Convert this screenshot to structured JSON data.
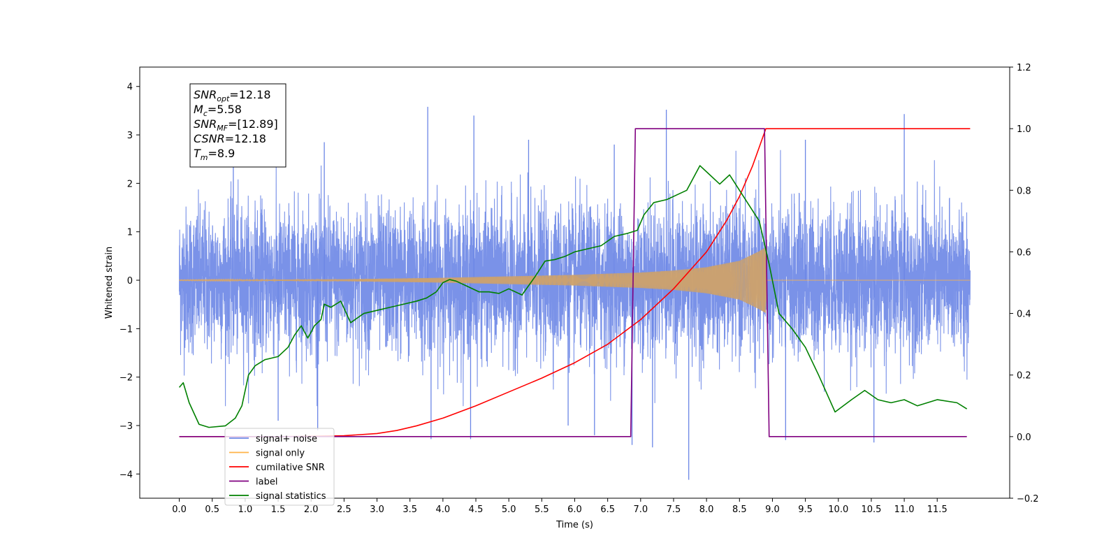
{
  "chart_data": {
    "type": "line",
    "title": "",
    "xlabel": "Time (s)",
    "ylabel": "Whitened strain",
    "xlim": [
      -0.6,
      12.6
    ],
    "ylim": [
      -4.5,
      4.4
    ],
    "ylim_right": [
      -0.2,
      1.2
    ],
    "grid": false,
    "legend_position": "lower-left",
    "x_ticks": [
      0.0,
      0.5,
      1.0,
      1.5,
      2.0,
      2.5,
      3.0,
      3.5,
      4.0,
      4.5,
      5.0,
      5.5,
      6.0,
      6.5,
      7.0,
      7.5,
      8.0,
      8.5,
      9.0,
      9.5,
      10.0,
      10.5,
      11.0,
      11.5
    ],
    "x_tick_labels": [
      "0.0",
      "0.5",
      "1.0",
      "1.5",
      "2.0",
      "2.5",
      "3.0",
      "3.5",
      "4.0",
      "4.5",
      "5.0",
      "5.5",
      "6.0",
      "6.5",
      "7.0",
      "7.5",
      "8.0",
      "8.5",
      "9.0",
      "9.5",
      "10.0",
      "10.5",
      "11.0",
      "11.5"
    ],
    "y_ticks": [
      -4,
      -3,
      -2,
      -1,
      0,
      1,
      2,
      3,
      4
    ],
    "y_tick_labels": [
      "−4",
      "−3",
      "−2",
      "−1",
      "0",
      "1",
      "2",
      "3",
      "4"
    ],
    "y_right_ticks": [
      -0.2,
      0.0,
      0.2,
      0.4,
      0.6,
      0.8,
      1.0,
      1.2
    ],
    "y_right_tick_labels": [
      "−0.2",
      "0.0",
      "0.2",
      "0.4",
      "0.6",
      "0.8",
      "1.0",
      "1.2"
    ],
    "annotation": {
      "lines": [
        {
          "base": "SNR",
          "sub": "opt",
          "value": "=12.18"
        },
        {
          "base": "M",
          "sub": "c",
          "value": "=5.58"
        },
        {
          "base": "SNR",
          "sub": "MF",
          "value": "=[12.89]"
        },
        {
          "base": "CSNR",
          "sub": "",
          "value": "=12.18"
        },
        {
          "base": "T",
          "sub": "m",
          "value": "=8.9"
        }
      ]
    },
    "series": [
      {
        "name": "signal+ noise",
        "axis": "left",
        "color": "#6b86e6",
        "style": "noise",
        "x_range": [
          0.0,
          12.0
        ],
        "envelope": {
          "typical_max": 1.8,
          "typical_min": -1.7
        },
        "spikes": [
          {
            "x": 3.77,
            "y": 3.58
          },
          {
            "x": 4.47,
            "y": 3.4
          },
          {
            "x": 7.39,
            "y": 3.52
          },
          {
            "x": 11.0,
            "y": 3.43
          },
          {
            "x": 0.82,
            "y": 2.9
          },
          {
            "x": 2.2,
            "y": 2.85
          },
          {
            "x": 5.3,
            "y": 2.9
          },
          {
            "x": 6.6,
            "y": 2.8
          },
          {
            "x": 9.5,
            "y": 2.9
          },
          {
            "x": 7.73,
            "y": -4.12
          },
          {
            "x": 7.18,
            "y": -3.45
          },
          {
            "x": 6.87,
            "y": -3.4
          },
          {
            "x": 3.82,
            "y": -3.28
          },
          {
            "x": 4.42,
            "y": -3.28
          },
          {
            "x": 10.54,
            "y": -3.35
          },
          {
            "x": 6.3,
            "y": -3.2
          },
          {
            "x": 9.2,
            "y": -3.3
          },
          {
            "x": 1.5,
            "y": -2.9
          },
          {
            "x": 2.1,
            "y": -3.1
          },
          {
            "x": 5.9,
            "y": -3.0
          }
        ]
      },
      {
        "name": "signal only",
        "axis": "left",
        "color": "#ffb347",
        "style": "chirp",
        "x_range": [
          0.0,
          12.0
        ],
        "merger_time": 8.9,
        "amplitude_points": [
          [
            0.0,
            0.005
          ],
          [
            2.5,
            0.02
          ],
          [
            4.0,
            0.05
          ],
          [
            5.0,
            0.08
          ],
          [
            6.0,
            0.11
          ],
          [
            7.0,
            0.16
          ],
          [
            7.5,
            0.2
          ],
          [
            8.0,
            0.27
          ],
          [
            8.5,
            0.4
          ],
          [
            8.8,
            0.6
          ],
          [
            8.9,
            0.68
          ]
        ]
      },
      {
        "name": "cumilative SNR",
        "axis": "right",
        "color": "#ff0000",
        "x": [
          0.0,
          1.5,
          2.0,
          2.5,
          3.0,
          3.3,
          3.6,
          4.0,
          4.5,
          5.0,
          5.5,
          6.0,
          6.5,
          7.0,
          7.5,
          8.0,
          8.3,
          8.5,
          8.7,
          8.8,
          8.9,
          12.0
        ],
        "values": [
          0.0,
          0.0,
          0.001,
          0.003,
          0.01,
          0.02,
          0.035,
          0.06,
          0.1,
          0.145,
          0.19,
          0.24,
          0.3,
          0.38,
          0.48,
          0.6,
          0.7,
          0.78,
          0.88,
          0.94,
          1.0,
          1.0
        ]
      },
      {
        "name": "label",
        "axis": "right",
        "color": "#800080",
        "x": [
          0.0,
          6.85,
          6.92,
          8.88,
          8.95,
          11.95
        ],
        "values": [
          0.0,
          0.0,
          1.0,
          1.0,
          0.0,
          0.0
        ]
      },
      {
        "name": "signal statistics",
        "axis": "right",
        "color": "#008000",
        "x": [
          0.0,
          0.06,
          0.15,
          0.3,
          0.45,
          0.7,
          0.85,
          0.95,
          1.05,
          1.15,
          1.3,
          1.5,
          1.65,
          1.75,
          1.85,
          1.95,
          2.05,
          2.15,
          2.2,
          2.3,
          2.45,
          2.6,
          2.8,
          3.0,
          3.2,
          3.4,
          3.6,
          3.75,
          3.9,
          4.0,
          4.1,
          4.2,
          4.35,
          4.55,
          4.7,
          4.85,
          5.0,
          5.2,
          5.4,
          5.55,
          5.7,
          5.85,
          6.0,
          6.2,
          6.4,
          6.6,
          6.8,
          6.95,
          7.05,
          7.2,
          7.4,
          7.6,
          7.7,
          7.9,
          8.05,
          8.2,
          8.35,
          8.5,
          8.65,
          8.8,
          8.95,
          9.1,
          9.3,
          9.5,
          9.7,
          9.95,
          10.2,
          10.4,
          10.6,
          10.8,
          11.0,
          11.2,
          11.5,
          11.8,
          11.95
        ],
        "values": [
          0.16,
          0.175,
          0.11,
          0.04,
          0.03,
          0.035,
          0.06,
          0.1,
          0.2,
          0.23,
          0.25,
          0.26,
          0.29,
          0.33,
          0.36,
          0.32,
          0.36,
          0.38,
          0.43,
          0.42,
          0.44,
          0.37,
          0.4,
          0.41,
          0.42,
          0.43,
          0.44,
          0.45,
          0.47,
          0.5,
          0.51,
          0.505,
          0.49,
          0.47,
          0.47,
          0.465,
          0.48,
          0.46,
          0.52,
          0.57,
          0.575,
          0.585,
          0.6,
          0.61,
          0.62,
          0.65,
          0.66,
          0.67,
          0.72,
          0.76,
          0.77,
          0.79,
          0.8,
          0.88,
          0.85,
          0.82,
          0.85,
          0.8,
          0.75,
          0.7,
          0.56,
          0.4,
          0.35,
          0.29,
          0.2,
          0.08,
          0.12,
          0.15,
          0.12,
          0.11,
          0.12,
          0.1,
          0.12,
          0.11,
          0.09
        ]
      }
    ],
    "legend": [
      {
        "label": "signal+ noise",
        "color": "#6b86e6"
      },
      {
        "label": "signal only",
        "color": "#ffb347"
      },
      {
        "label": "cumilative SNR",
        "color": "#ff0000"
      },
      {
        "label": "label",
        "color": "#800080"
      },
      {
        "label": "signal statistics",
        "color": "#008000"
      }
    ]
  }
}
